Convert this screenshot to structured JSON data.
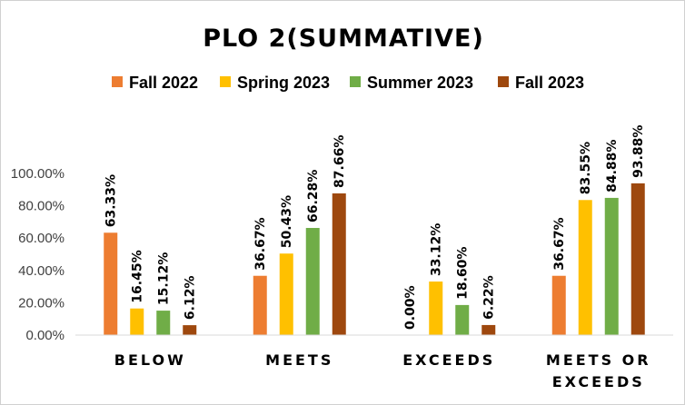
{
  "chart_data": {
    "type": "bar",
    "title": "PLO 2(SUMMATIVE)",
    "categories": [
      [
        "BELOW"
      ],
      [
        "MEETS"
      ],
      [
        "EXCEEDS"
      ],
      [
        "MEETS OR",
        "EXCEEDS"
      ]
    ],
    "series": [
      {
        "name": "Fall 2022",
        "color": "#ED7D31",
        "values": [
          63.33,
          36.67,
          0.0,
          36.67
        ],
        "labels": [
          "63.33%",
          "36.67%",
          "0.00%",
          "36.67%"
        ]
      },
      {
        "name": "Spring 2023",
        "color": "#FFC000",
        "values": [
          16.45,
          50.43,
          33.12,
          83.55
        ],
        "labels": [
          "16.45%",
          "50.43%",
          "33.12%",
          "83.55%"
        ]
      },
      {
        "name": "Summer 2023",
        "color": "#70AD47",
        "values": [
          15.12,
          66.28,
          18.6,
          84.88
        ],
        "labels": [
          "15.12%",
          "66.28%",
          "18.60%",
          "84.88%"
        ]
      },
      {
        "name": "Fall 2023",
        "color": "#9E480E",
        "values": [
          6.12,
          87.66,
          6.22,
          93.88
        ],
        "labels": [
          "6.12%",
          "87.66%",
          "6.22%",
          "93.88%"
        ]
      }
    ],
    "yticks": [
      "0.00%",
      "20.00%",
      "40.00%",
      "60.00%",
      "80.00%",
      "100.00%"
    ],
    "ylim": [
      0,
      100
    ],
    "legend_position": "top",
    "grid": false
  }
}
